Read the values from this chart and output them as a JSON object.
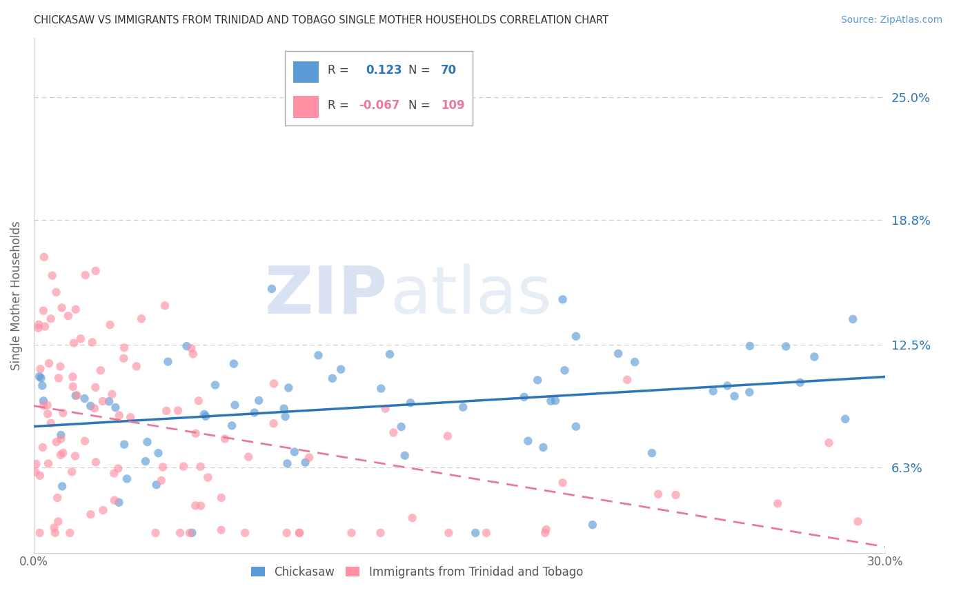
{
  "title": "CHICKASAW VS IMMIGRANTS FROM TRINIDAD AND TOBAGO SINGLE MOTHER HOUSEHOLDS CORRELATION CHART",
  "source": "Source: ZipAtlas.com",
  "ylabel": "Single Mother Households",
  "xlim": [
    0.0,
    0.3
  ],
  "ylim": [
    0.02,
    0.28
  ],
  "yticks": [
    0.063,
    0.125,
    0.188,
    0.25
  ],
  "right_ytick_labels": [
    "6.3%",
    "12.5%",
    "18.8%",
    "25.0%"
  ],
  "color_blue": "#5B9BD5",
  "color_pink": "#FF8FA3",
  "color_trendline_blue": "#2E75B6",
  "color_trendline_pink": "#E8799A",
  "watermark_zip": "ZIP",
  "watermark_atlas": "atlas",
  "watermark_color": "#D0DCF0",
  "blue_trend_start": 0.085,
  "blue_trend_end": 0.105,
  "pink_trend_start": 0.092,
  "pink_trend_end": 0.04,
  "seed": 17
}
